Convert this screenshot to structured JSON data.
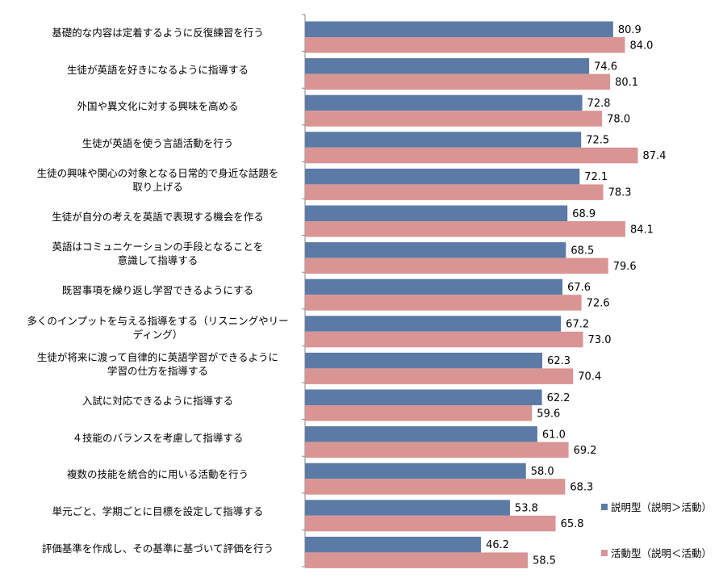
{
  "chart_data": {
    "type": "bar",
    "orientation": "horizontal",
    "categories": [
      [
        "基礎的な内容は定着するように反復練習を行う"
      ],
      [
        "生徒が英語を好きになるように指導する"
      ],
      [
        "外国や異文化に対する興味を高める"
      ],
      [
        "生徒が英語を使う言語活動を行う"
      ],
      [
        "生徒の興味や関心の対象となる日常的で身近な話題を",
        "取り上げる"
      ],
      [
        "生徒が自分の考えを英語で表現する機会を作る"
      ],
      [
        "英語はコミュニケーションの手段となることを",
        "意識して指導する"
      ],
      [
        "既習事項を繰り返し学習できるようにする"
      ],
      [
        "多くのインプットを与える指導をする（リスニングやリー",
        "ディング）"
      ],
      [
        "生徒が将来に渡って自律的に英語学習ができるように",
        "学習の仕方を指導する"
      ],
      [
        "入試に対応できるように指導する"
      ],
      [
        "４技能のバランスを考慮して指導する"
      ],
      [
        "複数の技能を統合的に用いる活動を行う"
      ],
      [
        "単元ごと、学期ごとに目標を設定して指導する"
      ],
      [
        "評価基準を作成し、その基準に基づいて評価を行う"
      ]
    ],
    "series": [
      {
        "name": "説明型（説明＞活動）",
        "color": "#5b7ba6",
        "values": [
          80.9,
          74.6,
          72.8,
          72.5,
          72.1,
          68.9,
          68.5,
          67.6,
          67.2,
          62.3,
          62.2,
          61.0,
          58.0,
          53.8,
          46.2
        ],
        "labels": [
          "80.9",
          "74.6",
          "72.8",
          "72.5",
          "72.1",
          "68.9",
          "68.5",
          "67.6",
          "67.2",
          "62.3",
          "62.2",
          "61.0",
          "58.0",
          "53.8",
          "46.2"
        ]
      },
      {
        "name": "活動型（説明＜活動）",
        "color": "#d99594",
        "values": [
          84.0,
          80.1,
          78.0,
          87.4,
          78.3,
          84.1,
          79.6,
          72.6,
          73.0,
          70.4,
          59.6,
          69.2,
          68.3,
          65.8,
          58.5
        ],
        "labels": [
          "84.0",
          "80.1",
          "78.0",
          "87.4",
          "78.3",
          "84.1",
          "79.6",
          "72.6",
          "73.0",
          "70.4",
          "59.6",
          "69.2",
          "68.3",
          "65.8",
          "58.5"
        ]
      }
    ],
    "xlim": [
      0,
      100
    ],
    "grid": false,
    "legend": "right"
  }
}
